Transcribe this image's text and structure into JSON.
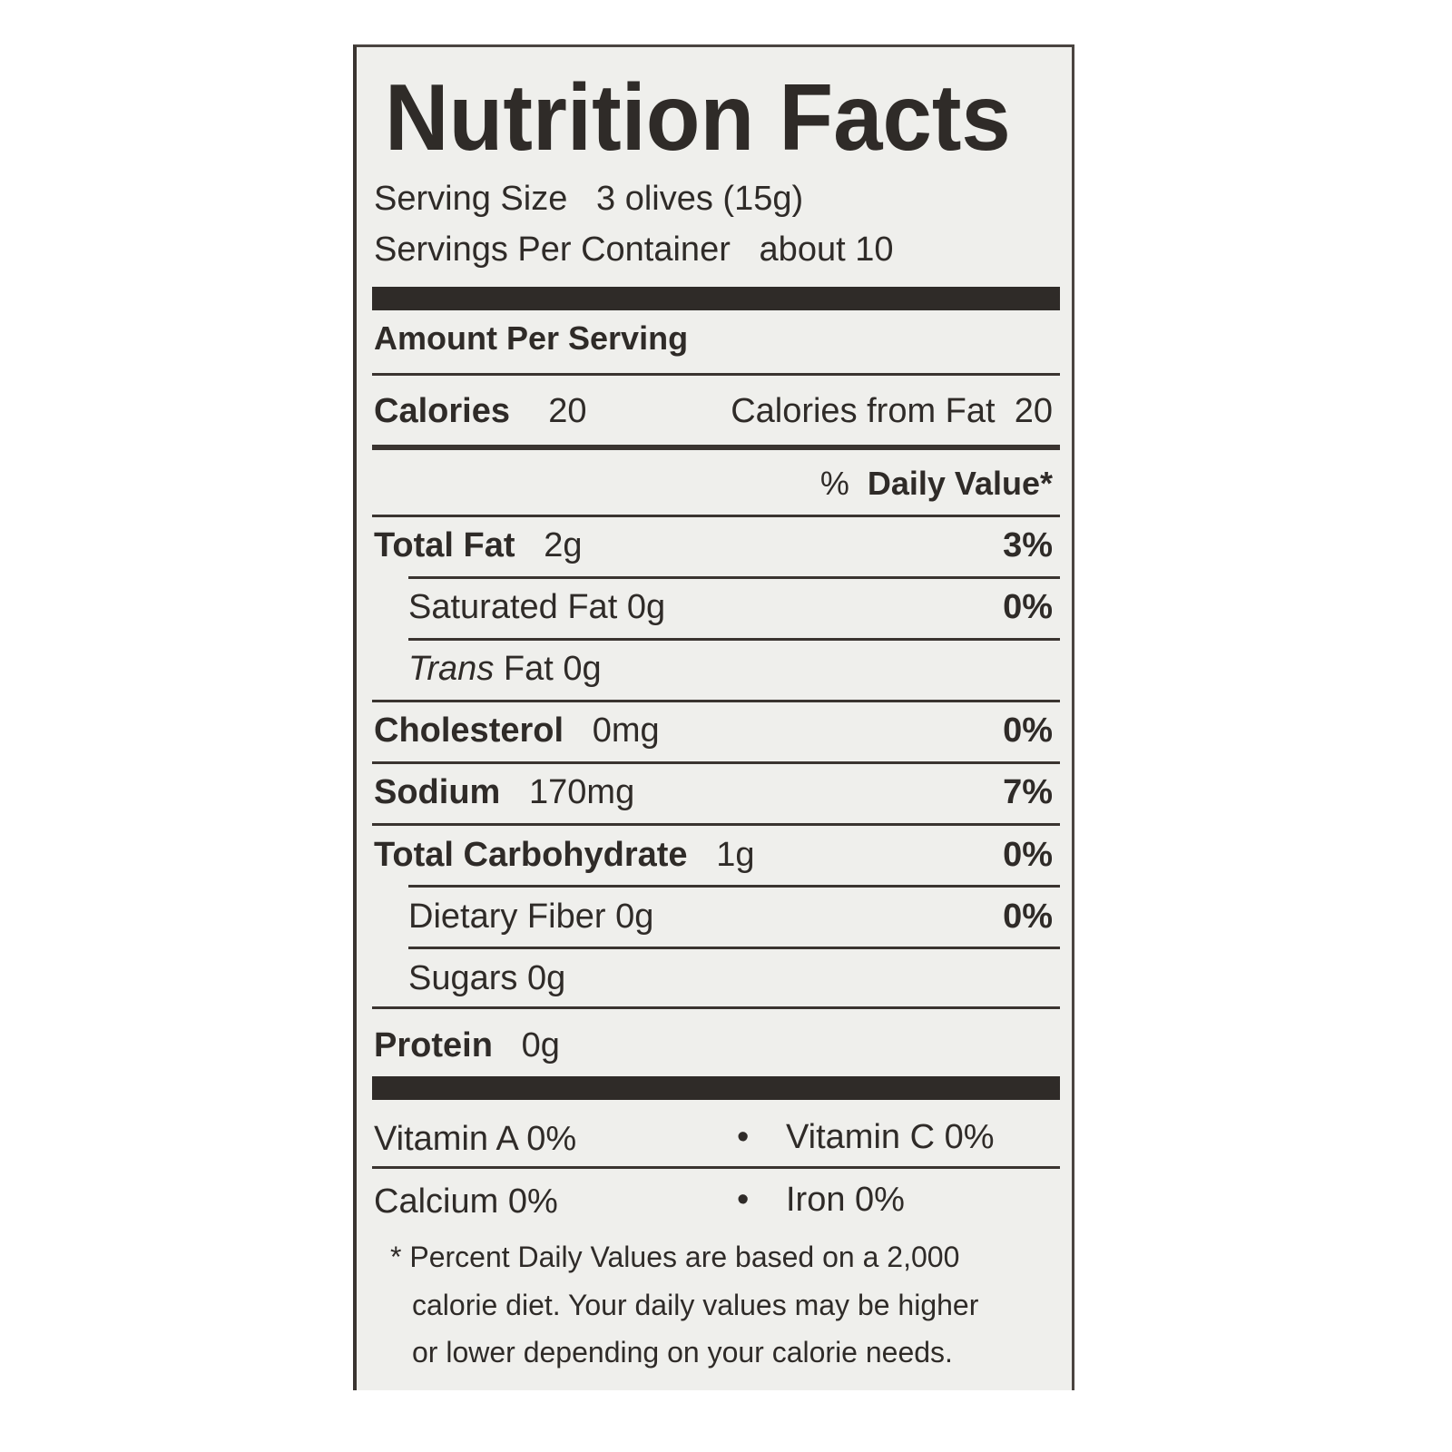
{
  "title": "Nutrition Facts",
  "serving_size": {
    "label": "Serving Size",
    "value": "3  olives  (15g)"
  },
  "servings_per_container": {
    "label": "Servings Per Container",
    "value": "about 10"
  },
  "amount_per_serving": "Amount Per Serving",
  "calories": {
    "label": "Calories",
    "value": "20",
    "from_fat_label": "Calories from Fat",
    "from_fat_value": "20"
  },
  "daily_value_header": {
    "pct": "%",
    "label": "Daily Value*"
  },
  "nutrients": [
    {
      "label": "Total Fat",
      "amount": "2g",
      "dv": "3%"
    },
    {
      "label": "Saturated Fat",
      "amount": "0g",
      "dv": "0%"
    },
    {
      "label": "Trans",
      "amount": "Fat 0g",
      "dv": ""
    },
    {
      "label": "Cholesterol",
      "amount": "0mg",
      "dv": "0%"
    },
    {
      "label": "Sodium",
      "amount": "170mg",
      "dv": "7%"
    },
    {
      "label": "Total Carbohydrate",
      "amount": "1g",
      "dv": "0%"
    },
    {
      "label": "Dietary Fiber",
      "amount": "0g",
      "dv": "0%"
    },
    {
      "label": "Sugars",
      "amount": "0g",
      "dv": ""
    },
    {
      "label": "Protein",
      "amount": "0g",
      "dv": ""
    }
  ],
  "vitamins": [
    {
      "label": "Vitamin A",
      "value": "0%"
    },
    {
      "label": "Vitamin C",
      "value": "0%"
    },
    {
      "label": "Calcium",
      "value": "0%"
    },
    {
      "label": "Iron",
      "value": "0%"
    }
  ],
  "bullet": "•",
  "footnote": [
    "* Percent Daily Values are based on a 2,000",
    "calorie diet. Your daily values may be higher",
    "or lower depending on your calorie needs."
  ]
}
